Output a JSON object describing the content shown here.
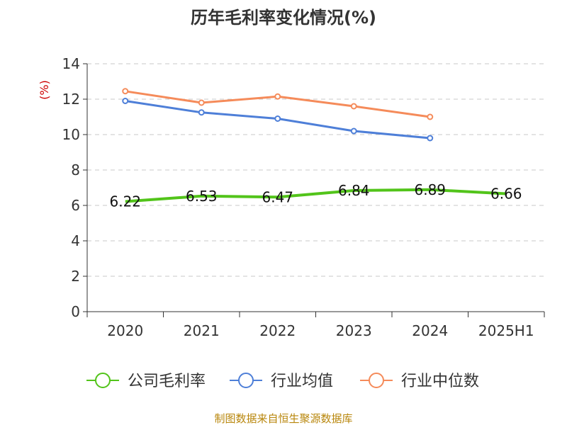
{
  "chart_data": {
    "type": "line",
    "title": "历年毛利率变化情况(%)",
    "ylabel": "(%)",
    "xlabel": "",
    "categories": [
      "2020",
      "2021",
      "2022",
      "2023",
      "2024",
      "2025H1"
    ],
    "ylim": [
      0,
      14
    ],
    "yticks": [
      "0",
      "2",
      "4",
      "6",
      "8",
      "10",
      "12",
      "14"
    ],
    "grid": true,
    "legend_position": "bottom",
    "series": [
      {
        "name": "公司毛利率",
        "values": [
          6.22,
          6.53,
          6.47,
          6.84,
          6.89,
          6.66
        ],
        "labels": [
          "6.22",
          "6.53",
          "6.47",
          "6.84",
          "6.89",
          "6.66"
        ],
        "color": "#52c41a"
      },
      {
        "name": "行业均值",
        "values": [
          11.9,
          11.25,
          10.9,
          10.2,
          9.8,
          null
        ],
        "color": "#4e7fd8"
      },
      {
        "name": "行业中位数",
        "values": [
          12.45,
          11.8,
          12.15,
          11.6,
          11.0,
          null
        ],
        "color": "#f58b5a"
      }
    ]
  },
  "source": "制图数据来自恒生聚源数据库"
}
